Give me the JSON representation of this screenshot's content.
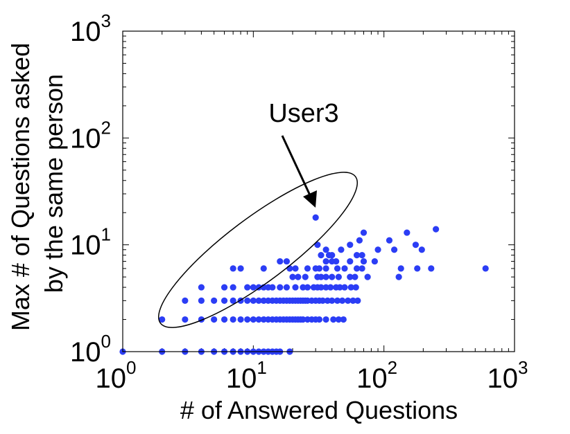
{
  "chart_data": {
    "type": "scatter",
    "xlabel": "# of Answered Questions",
    "ylabel_lines": [
      "Max # of Questions asked",
      "by the same person"
    ],
    "x_scale": "log",
    "y_scale": "log",
    "xlim": [
      1,
      1000
    ],
    "ylim": [
      1,
      1000
    ],
    "x_ticks": [
      {
        "value": 1,
        "base": "10",
        "exp": "0"
      },
      {
        "value": 10,
        "base": "10",
        "exp": "1"
      },
      {
        "value": 100,
        "base": "10",
        "exp": "2"
      },
      {
        "value": 1000,
        "base": "10",
        "exp": "3"
      }
    ],
    "y_ticks": [
      {
        "value": 1,
        "base": "10",
        "exp": "0"
      },
      {
        "value": 10,
        "base": "10",
        "exp": "1"
      },
      {
        "value": 100,
        "base": "10",
        "exp": "2"
      },
      {
        "value": 1000,
        "base": "10",
        "exp": "3"
      }
    ],
    "grid": false,
    "point_color": "#2b3df5",
    "annotation": {
      "text": "User3",
      "points_to": [
        30,
        18
      ],
      "ellipse_around": "outlier users including User3"
    },
    "points": [
      [
        1,
        1
      ],
      [
        2,
        1
      ],
      [
        3,
        1
      ],
      [
        4,
        1
      ],
      [
        5,
        1
      ],
      [
        6,
        1
      ],
      [
        7,
        1
      ],
      [
        8,
        1
      ],
      [
        9,
        1
      ],
      [
        10,
        1
      ],
      [
        11,
        1
      ],
      [
        12,
        1
      ],
      [
        13,
        1
      ],
      [
        14,
        1
      ],
      [
        15,
        1
      ],
      [
        16,
        1
      ],
      [
        19,
        1
      ],
      [
        2,
        2
      ],
      [
        3,
        2
      ],
      [
        4,
        2
      ],
      [
        5,
        2
      ],
      [
        6,
        2
      ],
      [
        7,
        2
      ],
      [
        8,
        2
      ],
      [
        9,
        2
      ],
      [
        10,
        2
      ],
      [
        11,
        2
      ],
      [
        12,
        2
      ],
      [
        13,
        2
      ],
      [
        14,
        2
      ],
      [
        15,
        2
      ],
      [
        16,
        2
      ],
      [
        17,
        2
      ],
      [
        18,
        2
      ],
      [
        19,
        2
      ],
      [
        20,
        2
      ],
      [
        21,
        2
      ],
      [
        22,
        2
      ],
      [
        23,
        2
      ],
      [
        24,
        2
      ],
      [
        26,
        2
      ],
      [
        28,
        2
      ],
      [
        30,
        2
      ],
      [
        32,
        2
      ],
      [
        36,
        2
      ],
      [
        41,
        2
      ],
      [
        45,
        2
      ],
      [
        49,
        2
      ],
      [
        3,
        3
      ],
      [
        4,
        3
      ],
      [
        5,
        3
      ],
      [
        6,
        3
      ],
      [
        7,
        3
      ],
      [
        8,
        3
      ],
      [
        9,
        3
      ],
      [
        10,
        3
      ],
      [
        11,
        3
      ],
      [
        12,
        3
      ],
      [
        13,
        3
      ],
      [
        14,
        3
      ],
      [
        15,
        3
      ],
      [
        16,
        3
      ],
      [
        17,
        3
      ],
      [
        18,
        3
      ],
      [
        19,
        3
      ],
      [
        20,
        3
      ],
      [
        21,
        3
      ],
      [
        22,
        3
      ],
      [
        23,
        3
      ],
      [
        24,
        3
      ],
      [
        25,
        3
      ],
      [
        26,
        3
      ],
      [
        28,
        3
      ],
      [
        30,
        3
      ],
      [
        32,
        3
      ],
      [
        34,
        3
      ],
      [
        37,
        3
      ],
      [
        40,
        3
      ],
      [
        44,
        3
      ],
      [
        48,
        3
      ],
      [
        53,
        3
      ],
      [
        58,
        3
      ],
      [
        63,
        3
      ],
      [
        4,
        4
      ],
      [
        6,
        4
      ],
      [
        7,
        4
      ],
      [
        9,
        4
      ],
      [
        10,
        4
      ],
      [
        11,
        4
      ],
      [
        12,
        4
      ],
      [
        13,
        4
      ],
      [
        14,
        4
      ],
      [
        16,
        4
      ],
      [
        18,
        4
      ],
      [
        21,
        4
      ],
      [
        24,
        4
      ],
      [
        26,
        4
      ],
      [
        29,
        4
      ],
      [
        31,
        4
      ],
      [
        33,
        4
      ],
      [
        36,
        4
      ],
      [
        39,
        4
      ],
      [
        43,
        4
      ],
      [
        46,
        4
      ],
      [
        50,
        4
      ],
      [
        56,
        4
      ],
      [
        61,
        4
      ],
      [
        20,
        5
      ],
      [
        22,
        5
      ],
      [
        25,
        5
      ],
      [
        31,
        5
      ],
      [
        33,
        5
      ],
      [
        36,
        5
      ],
      [
        40,
        5
      ],
      [
        45,
        5
      ],
      [
        55,
        5
      ],
      [
        60,
        5
      ],
      [
        75,
        5
      ],
      [
        130,
        5
      ],
      [
        7,
        6
      ],
      [
        8,
        6
      ],
      [
        12,
        6
      ],
      [
        19,
        6
      ],
      [
        21,
        6
      ],
      [
        26,
        6
      ],
      [
        30,
        6
      ],
      [
        32,
        6
      ],
      [
        36,
        6
      ],
      [
        44,
        6
      ],
      [
        50,
        6
      ],
      [
        62,
        6
      ],
      [
        68,
        6
      ],
      [
        135,
        6
      ],
      [
        180,
        6
      ],
      [
        230,
        6
      ],
      [
        600,
        6
      ],
      [
        16,
        7
      ],
      [
        18,
        7
      ],
      [
        36,
        7
      ],
      [
        40,
        7
      ],
      [
        43,
        7
      ],
      [
        55,
        7
      ],
      [
        70,
        7
      ],
      [
        85,
        7
      ],
      [
        33,
        8
      ],
      [
        38,
        8
      ],
      [
        40,
        8
      ],
      [
        62,
        8
      ],
      [
        68,
        8
      ],
      [
        36,
        9
      ],
      [
        47,
        9
      ],
      [
        90,
        9
      ],
      [
        120,
        9
      ],
      [
        195,
        9
      ],
      [
        31,
        10
      ],
      [
        55,
        10
      ],
      [
        175,
        10
      ],
      [
        65,
        11
      ],
      [
        110,
        11
      ],
      [
        70,
        13
      ],
      [
        150,
        13
      ],
      [
        250,
        14
      ],
      [
        30,
        18
      ]
    ]
  }
}
